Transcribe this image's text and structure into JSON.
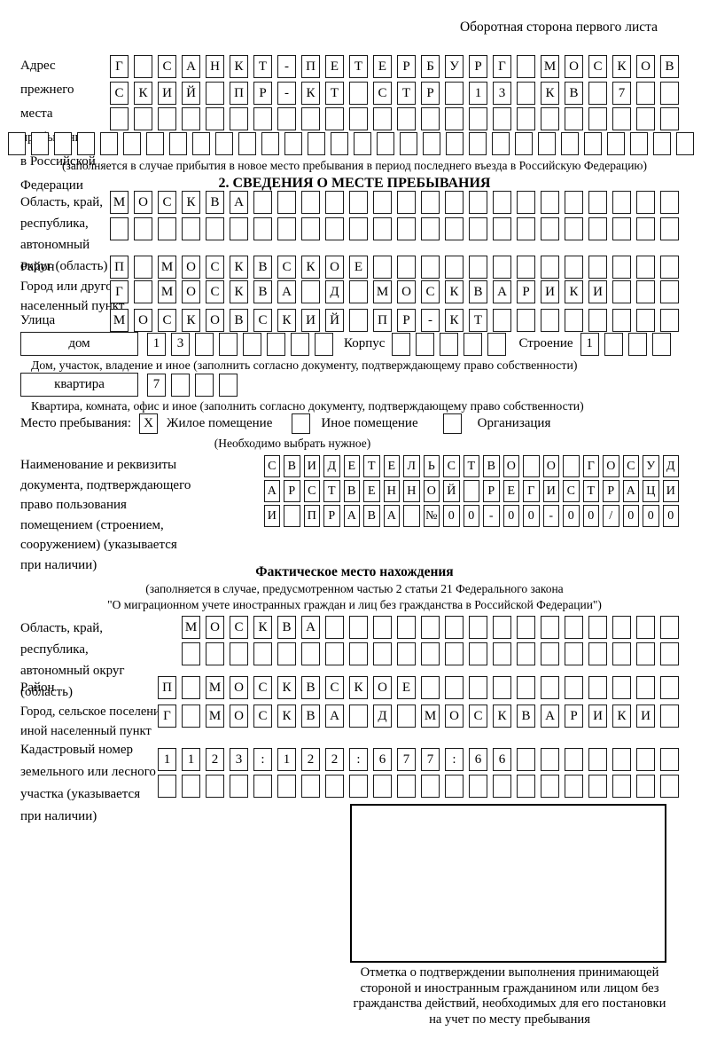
{
  "corner_note": "Оборотная сторона первого листа",
  "prev_address": {
    "label": "Адрес прежнего\nместа пребывания\nв Российской\nФедерации",
    "rows": [
      "Г САНКТ-ПЕТЕРБУРГ МОСКОВ",
      "СКИЙ ПР-КТ СТР 13 КВ 7  ",
      "                        "
    ],
    "extra_row": "                              ",
    "note": "(заполняется в случае прибытия в новое место пребывания в период последнего въезда в Российскую Федерацию)"
  },
  "section2": {
    "title": "2. СВЕДЕНИЯ О МЕСТЕ ПРЕБЫВАНИЯ",
    "oblast_label": "Область, край,\nреспублика,\nавтономный\nокруг (область)",
    "oblast_rows": [
      "МОСКВА                  ",
      "                        "
    ],
    "raion_label": "Район",
    "raion_row": "П МОСКВСКОЕ             ",
    "gorod_label": "Город или другой\nнаселенный пункт",
    "gorod_row": "Г МОСКВА Д МОСКВАРИКИ   ",
    "ulitsa_label": "Улица",
    "ulitsa_row": "МОСКОВСКИЙ ПР-КТ        ",
    "dom_word": "дом",
    "dom_cells": "13      ",
    "korpus_label": "Корпус",
    "korpus_cells": "     ",
    "stroenie_label": "Строение",
    "stroenie_cells": "1   ",
    "dom_caption": "Дом, участок, владение и иное (заполнить согласно документу, подтверждающему право собственности)",
    "kvartira_word": "квартира",
    "kvartira_cells": "7   ",
    "kvartira_caption": "Квартира, комната, офис и иное (заполнить согласно документу, подтверждающему право собственности)",
    "mesto_label": "Место пребывания:",
    "mesto_options": [
      {
        "label": "Жилое помещение",
        "mark": "X"
      },
      {
        "label": "Иное помещение",
        "mark": ""
      },
      {
        "label": "Организация",
        "mark": ""
      }
    ],
    "mesto_note": "(Необходимо выбрать нужное)",
    "doc_label": "Наименование и реквизиты\nдокумента, подтверждающего\nправо пользования\nпомещением (строением,\nсооружением) (указывается\nпри наличии)",
    "doc_rows": [
      "СВИДЕТЕЛЬСТВО О ГОСУД",
      "АРСТВЕННОЙ РЕГИСТРАЦИ",
      "И ПРАВА №00-00-00/000"
    ]
  },
  "fact": {
    "title": "Фактическое место нахождения",
    "note1": "(заполняется в случае, предусмотренном частью 2 статьи 21 Федерального закона",
    "note2": "\"О миграционном учете иностранных граждан и лиц без гражданства в Российской Федерации\")",
    "oblast_label": "Область, край,\nреспублика,\nавтономный округ\n(область)",
    "oblast_rows": [
      "МОСКВА               ",
      "                     "
    ],
    "raion_label": "Район",
    "raion_row": "П МОСКВСКОЕ           ",
    "gorod_label": "Город, сельское поселение,\nиной населенный пункт",
    "gorod_row": "Г МОСКВА Д МОСКВАРИКИ ",
    "kadastr_label": "Кадастровый номер\nземельного или лесного\nучастка (указывается\nпри наличии)",
    "kadastr_rows": [
      "1123:122:677:66       ",
      "                      "
    ],
    "stamp_caption": "Отметка о подтверждении выполнения принимающей\nстороной и иностранным гражданином или лицом без\nгражданства действий, необходимых для его постановки\nна учет по месту пребывания"
  }
}
